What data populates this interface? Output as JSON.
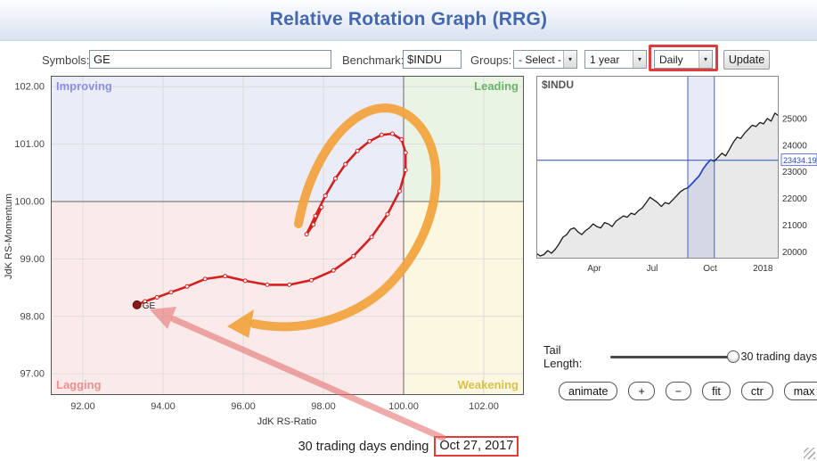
{
  "header": {
    "title": "Relative Rotation Graph (RRG)"
  },
  "toolbar": {
    "symbols_label": "Symbols:",
    "symbols_value": "GE",
    "benchmark_label": "Benchmark:",
    "benchmark_value": "$INDU",
    "groups_label": "Groups:",
    "groups_selected": "- Select -",
    "range_selected": "1 year",
    "frequency_selected": "Daily",
    "update_label": "Update"
  },
  "tail": {
    "label": "Tail Length:",
    "value": "30 trading days"
  },
  "controls": {
    "buttons": [
      "animate",
      "+",
      "−",
      "fit",
      "ctr",
      "max"
    ]
  },
  "footer": {
    "prefix": "30 trading days ending",
    "date": "Oct 27, 2017"
  },
  "annotation_colors": {
    "rotation_arrow": "#f2a33c",
    "callout_arrow": "#e57373",
    "highlight_box": "#e23b3b"
  },
  "chart_data": [
    {
      "type": "scatter",
      "name": "rrg-rotation-plot",
      "xlabel": "JdK RS-Ratio",
      "ylabel": "JdK RS-Momentum",
      "xlim": [
        91.2,
        103.0
      ],
      "ylim": [
        96.63,
        102.19
      ],
      "xticks": [
        "92.00",
        "94.00",
        "96.00",
        "98.00",
        "100.00",
        "102.00"
      ],
      "yticks": [
        "102.00",
        "101.00",
        "100.00",
        "99.00",
        "98.00",
        "97.00"
      ],
      "center": [
        100,
        100
      ],
      "quadrant_labels": [
        "Improving",
        "Leading",
        "Lagging",
        "Weakening"
      ],
      "quadrant_label_colors": [
        "#8a90dd",
        "#6cb468",
        "#ef8f8f",
        "#d9c04c"
      ],
      "quadrant_fill_colors": [
        "#eaecf8",
        "#eaf4e4",
        "#fbeaea",
        "#fcf7e0"
      ],
      "series": [
        {
          "name": "GE",
          "color": "#d42020",
          "points": [
            [
              97.95,
              99.9
            ],
            [
              97.75,
              99.6
            ],
            [
              97.58,
              99.43
            ],
            [
              97.8,
              99.75
            ],
            [
              98.05,
              100.1
            ],
            [
              98.3,
              100.4
            ],
            [
              98.55,
              100.65
            ],
            [
              98.85,
              100.88
            ],
            [
              99.15,
              101.05
            ],
            [
              99.45,
              101.16
            ],
            [
              99.72,
              101.18
            ],
            [
              99.95,
              101.08
            ],
            [
              100.05,
              100.85
            ],
            [
              100.05,
              100.55
            ],
            [
              99.9,
              100.18
            ],
            [
              99.6,
              99.78
            ],
            [
              99.2,
              99.38
            ],
            [
              98.75,
              99.05
            ],
            [
              98.25,
              98.8
            ],
            [
              97.7,
              98.63
            ],
            [
              97.15,
              98.55
            ],
            [
              96.6,
              98.55
            ],
            [
              96.05,
              98.62
            ],
            [
              95.55,
              98.7
            ],
            [
              95.05,
              98.65
            ],
            [
              94.6,
              98.52
            ],
            [
              94.2,
              98.42
            ],
            [
              93.85,
              98.33
            ],
            [
              93.55,
              98.26
            ],
            [
              93.35,
              98.2
            ]
          ]
        }
      ]
    },
    {
      "type": "line",
      "name": "benchmark-mini-chart",
      "title": "$INDU",
      "ylim": [
        19750,
        26600
      ],
      "yticks": [
        "25000",
        "24000",
        "23000",
        "22000",
        "21000",
        "20000"
      ],
      "xticks": [
        {
          "f": 0.239,
          "label": "Apr"
        },
        {
          "f": 0.478,
          "label": "Jul"
        },
        {
          "f": 0.717,
          "label": "Oct"
        },
        {
          "f": 0.935,
          "label": "2018"
        }
      ],
      "last_price": 23434.19,
      "last_price_label": "23434.19",
      "highlight_window": [
        40,
        47
      ],
      "values": [
        19950,
        19850,
        19900,
        20050,
        19950,
        20100,
        20300,
        20550,
        20650,
        20850,
        20900,
        20750,
        20650,
        20800,
        20900,
        21050,
        20950,
        20900,
        21100,
        21050,
        20950,
        21150,
        21250,
        21350,
        21300,
        21450,
        21400,
        21550,
        21650,
        21850,
        22050,
        21950,
        21850,
        21700,
        21850,
        21800,
        21950,
        22100,
        22250,
        22350,
        22400,
        22550,
        22700,
        22850,
        23100,
        23300,
        23450,
        23400,
        23550,
        23700,
        23600,
        23850,
        24100,
        24300,
        24250,
        24450,
        24600,
        24750,
        24700,
        24850,
        24800,
        25000,
        24900,
        25200,
        25100
      ]
    }
  ]
}
